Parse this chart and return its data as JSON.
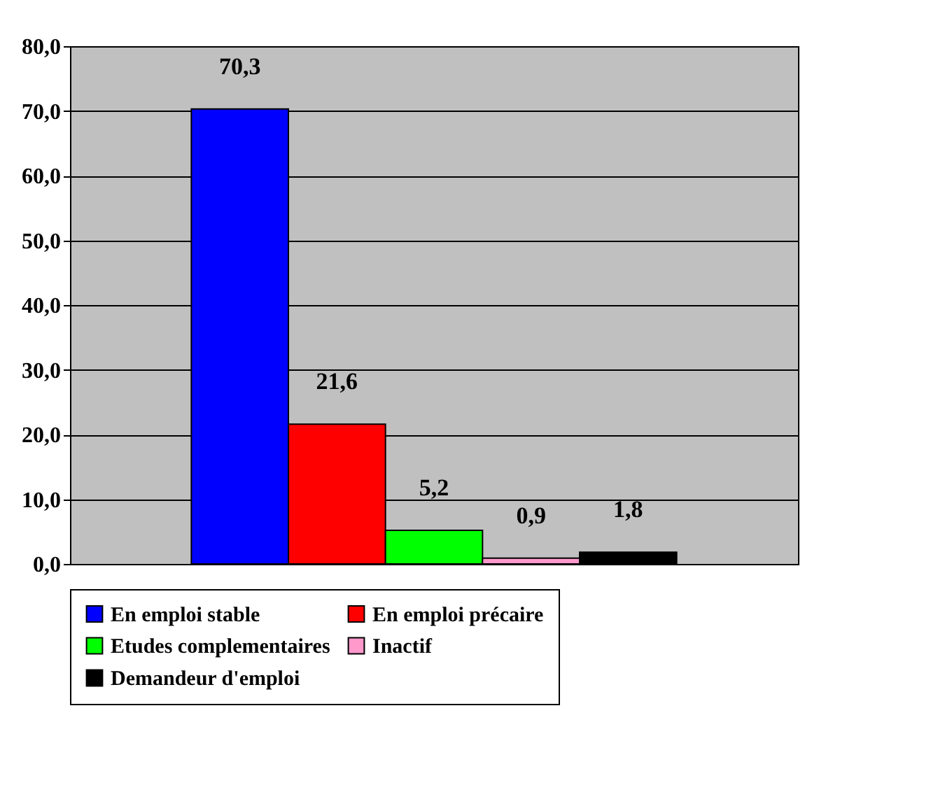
{
  "chart_data": {
    "type": "bar",
    "categories": [
      null
    ],
    "series": [
      {
        "name": "En emploi stable",
        "color": "#0000ff",
        "values": [
          70.3
        ],
        "value_labels": [
          "70,3"
        ]
      },
      {
        "name": "En emploi précaire",
        "color": "#ff0000",
        "values": [
          21.6
        ],
        "value_labels": [
          "21,6"
        ]
      },
      {
        "name": "Etudes complementaires",
        "color": "#00ff00",
        "values": [
          5.2
        ],
        "value_labels": [
          "5,2"
        ]
      },
      {
        "name": "Inactif",
        "color": "#ff99cc",
        "values": [
          0.9
        ],
        "value_labels": [
          "0,9"
        ]
      },
      {
        "name": "Demandeur d'emploi",
        "color": "#000000",
        "values": [
          1.8
        ],
        "value_labels": [
          "1,8"
        ]
      }
    ],
    "ylim": [
      0,
      80
    ],
    "yticks": [
      {
        "value": 0,
        "label": "0,0"
      },
      {
        "value": 10,
        "label": "10,0"
      },
      {
        "value": 20,
        "label": "20,0"
      },
      {
        "value": 30,
        "label": "30,0"
      },
      {
        "value": 40,
        "label": "40,0"
      },
      {
        "value": 50,
        "label": "50,0"
      },
      {
        "value": 60,
        "label": "60,0"
      },
      {
        "value": 70,
        "label": "70,0"
      },
      {
        "value": 80,
        "label": "80,0"
      }
    ],
    "grid": "y",
    "legend": "bottom",
    "tick_labels": "y"
  }
}
